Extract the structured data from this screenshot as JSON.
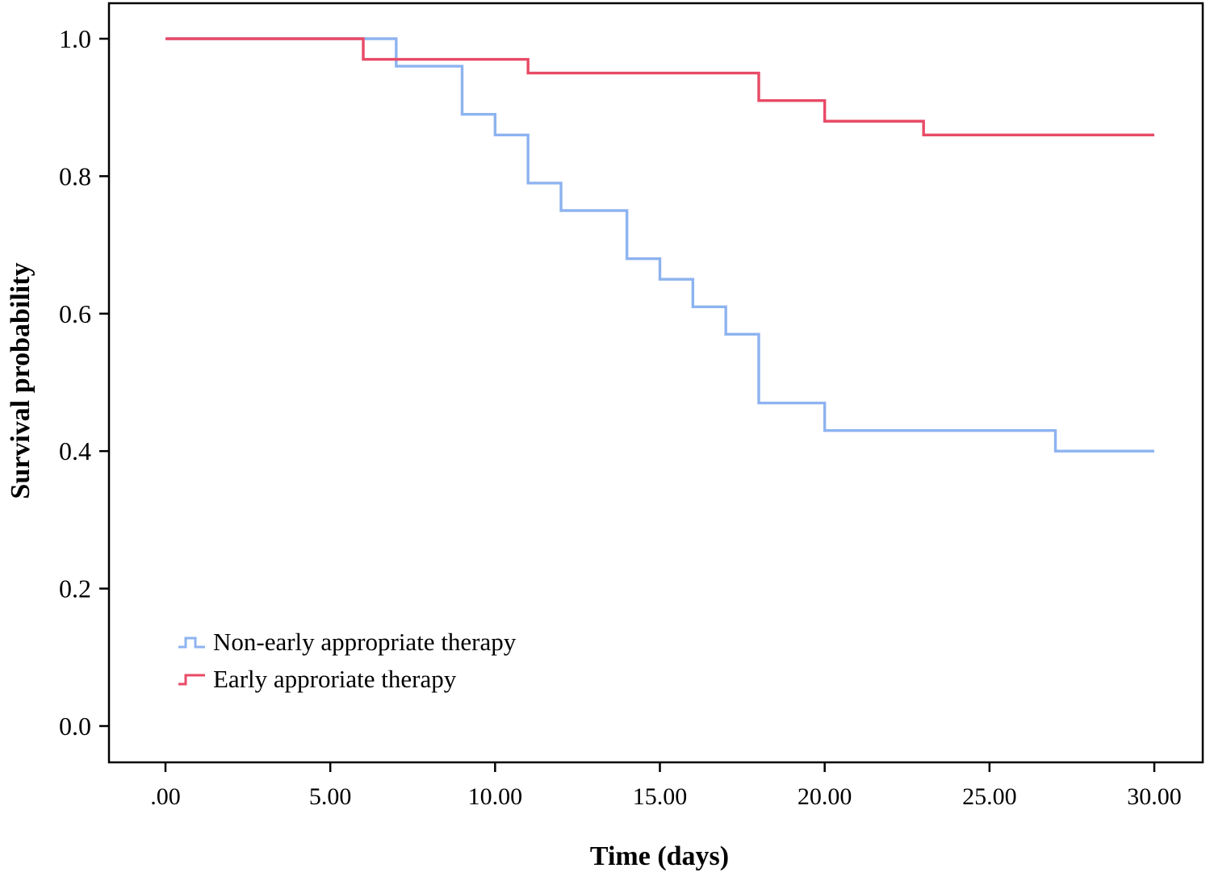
{
  "chart_data": {
    "type": "line",
    "subtype": "kaplan-meier-step",
    "title": "",
    "xlabel": "Time (days)",
    "ylabel": "Survival probability",
    "xlim": [
      0,
      30
    ],
    "ylim": [
      0.0,
      1.0
    ],
    "grid": false,
    "legend_position": "inside-lower-left",
    "x_ticks": [
      {
        "v": 0,
        "label": ".00"
      },
      {
        "v": 5,
        "label": "5.00"
      },
      {
        "v": 10,
        "label": "10.00"
      },
      {
        "v": 15,
        "label": "15.00"
      },
      {
        "v": 20,
        "label": "20.00"
      },
      {
        "v": 25,
        "label": "25.00"
      },
      {
        "v": 30,
        "label": "30.00"
      }
    ],
    "y_ticks": [
      {
        "v": 0.0,
        "label": "0.0"
      },
      {
        "v": 0.2,
        "label": "0.2"
      },
      {
        "v": 0.4,
        "label": "0.4"
      },
      {
        "v": 0.6,
        "label": "0.6"
      },
      {
        "v": 0.8,
        "label": "0.8"
      },
      {
        "v": 1.0,
        "label": "1.0"
      }
    ],
    "series": [
      {
        "name": "Non-early appropriate therapy",
        "color": "#8db3f0",
        "end_time": 30,
        "steps": [
          [
            0,
            1.0
          ],
          [
            7,
            0.96
          ],
          [
            9,
            0.89
          ],
          [
            10,
            0.86
          ],
          [
            11,
            0.79
          ],
          [
            12,
            0.75
          ],
          [
            14,
            0.68
          ],
          [
            15,
            0.65
          ],
          [
            16,
            0.61
          ],
          [
            17,
            0.57
          ],
          [
            18,
            0.47
          ],
          [
            20,
            0.43
          ],
          [
            27,
            0.4
          ]
        ]
      },
      {
        "name": "Early approriate therapy",
        "color": "#e84a66",
        "end_time": 30,
        "steps": [
          [
            0,
            1.0
          ],
          [
            6,
            0.97
          ],
          [
            11,
            0.95
          ],
          [
            18,
            0.91
          ],
          [
            20,
            0.88
          ],
          [
            23,
            0.86
          ]
        ]
      }
    ]
  }
}
